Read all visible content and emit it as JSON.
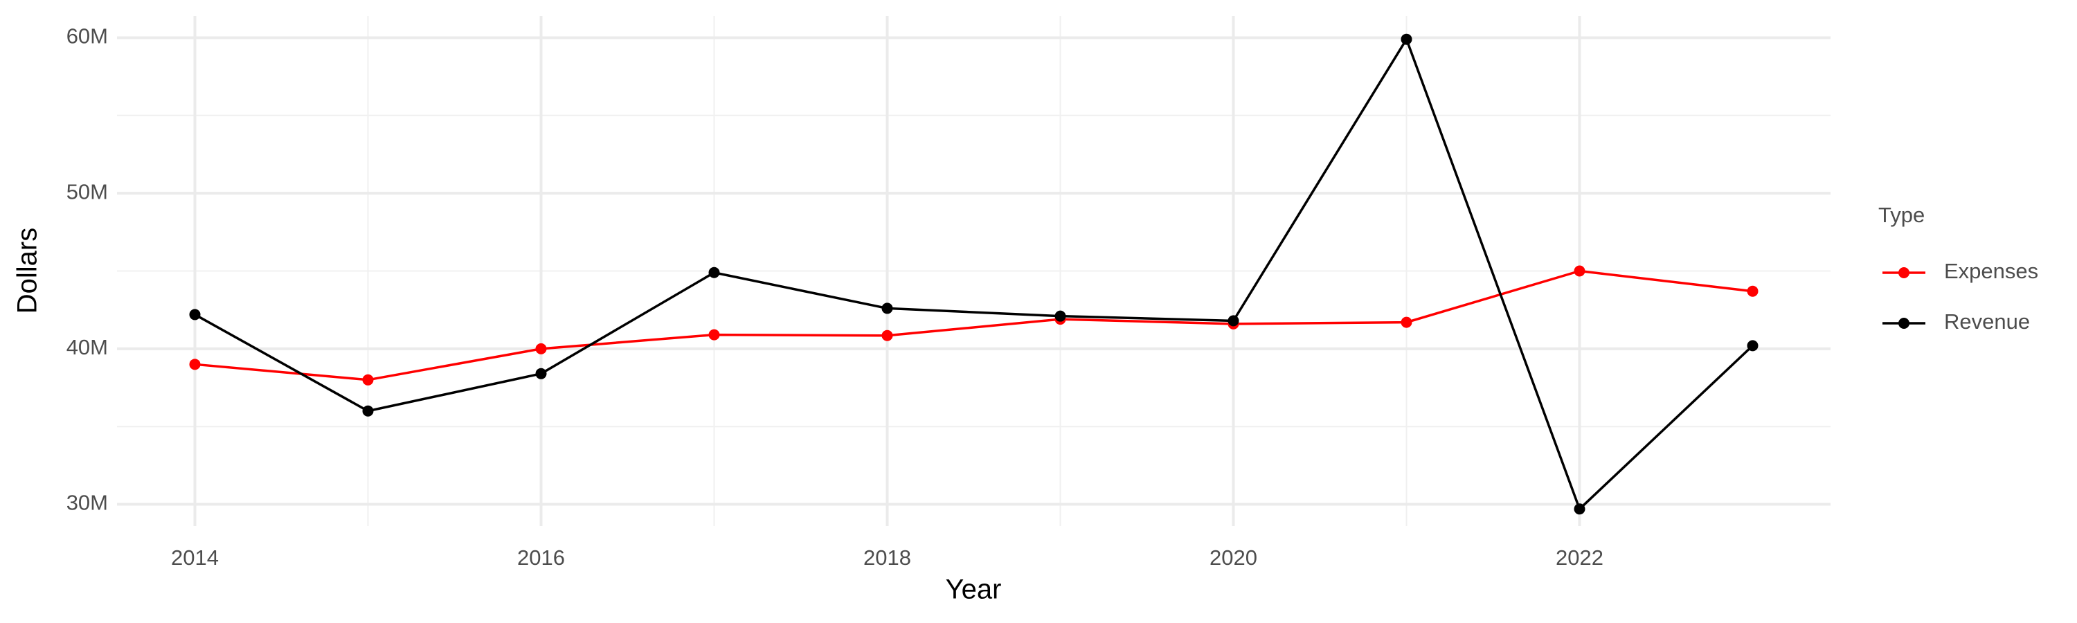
{
  "chart_data": {
    "type": "line",
    "x_label": "Year",
    "y_label": "Dollars",
    "x": [
      2014,
      2015,
      2016,
      2017,
      2018,
      2019,
      2020,
      2021,
      2022,
      2023
    ],
    "series": [
      {
        "name": "Expenses",
        "color": "#ff0000",
        "values": [
          39000000,
          38000000,
          40000000,
          40900000,
          40850000,
          41900000,
          41600000,
          41700000,
          45000000,
          43700000
        ]
      },
      {
        "name": "Revenue",
        "color": "#000000",
        "values": [
          42200000,
          36000000,
          38400000,
          44900000,
          42600000,
          42100000,
          41800000,
          59900000,
          29700000,
          40200000
        ]
      }
    ],
    "xlim": [
      2013.55,
      2023.45
    ],
    "xticks": [
      2014,
      2016,
      2018,
      2020,
      2022
    ],
    "ylim": [
      28600000,
      61400000
    ],
    "yticks": [
      {
        "value": 30000000,
        "label": "30M"
      },
      {
        "value": 40000000,
        "label": "40M"
      },
      {
        "value": 50000000,
        "label": "50M"
      },
      {
        "value": 60000000,
        "label": "60M"
      }
    ],
    "grid": true,
    "legend_title": "Type",
    "legend_position": "right"
  }
}
